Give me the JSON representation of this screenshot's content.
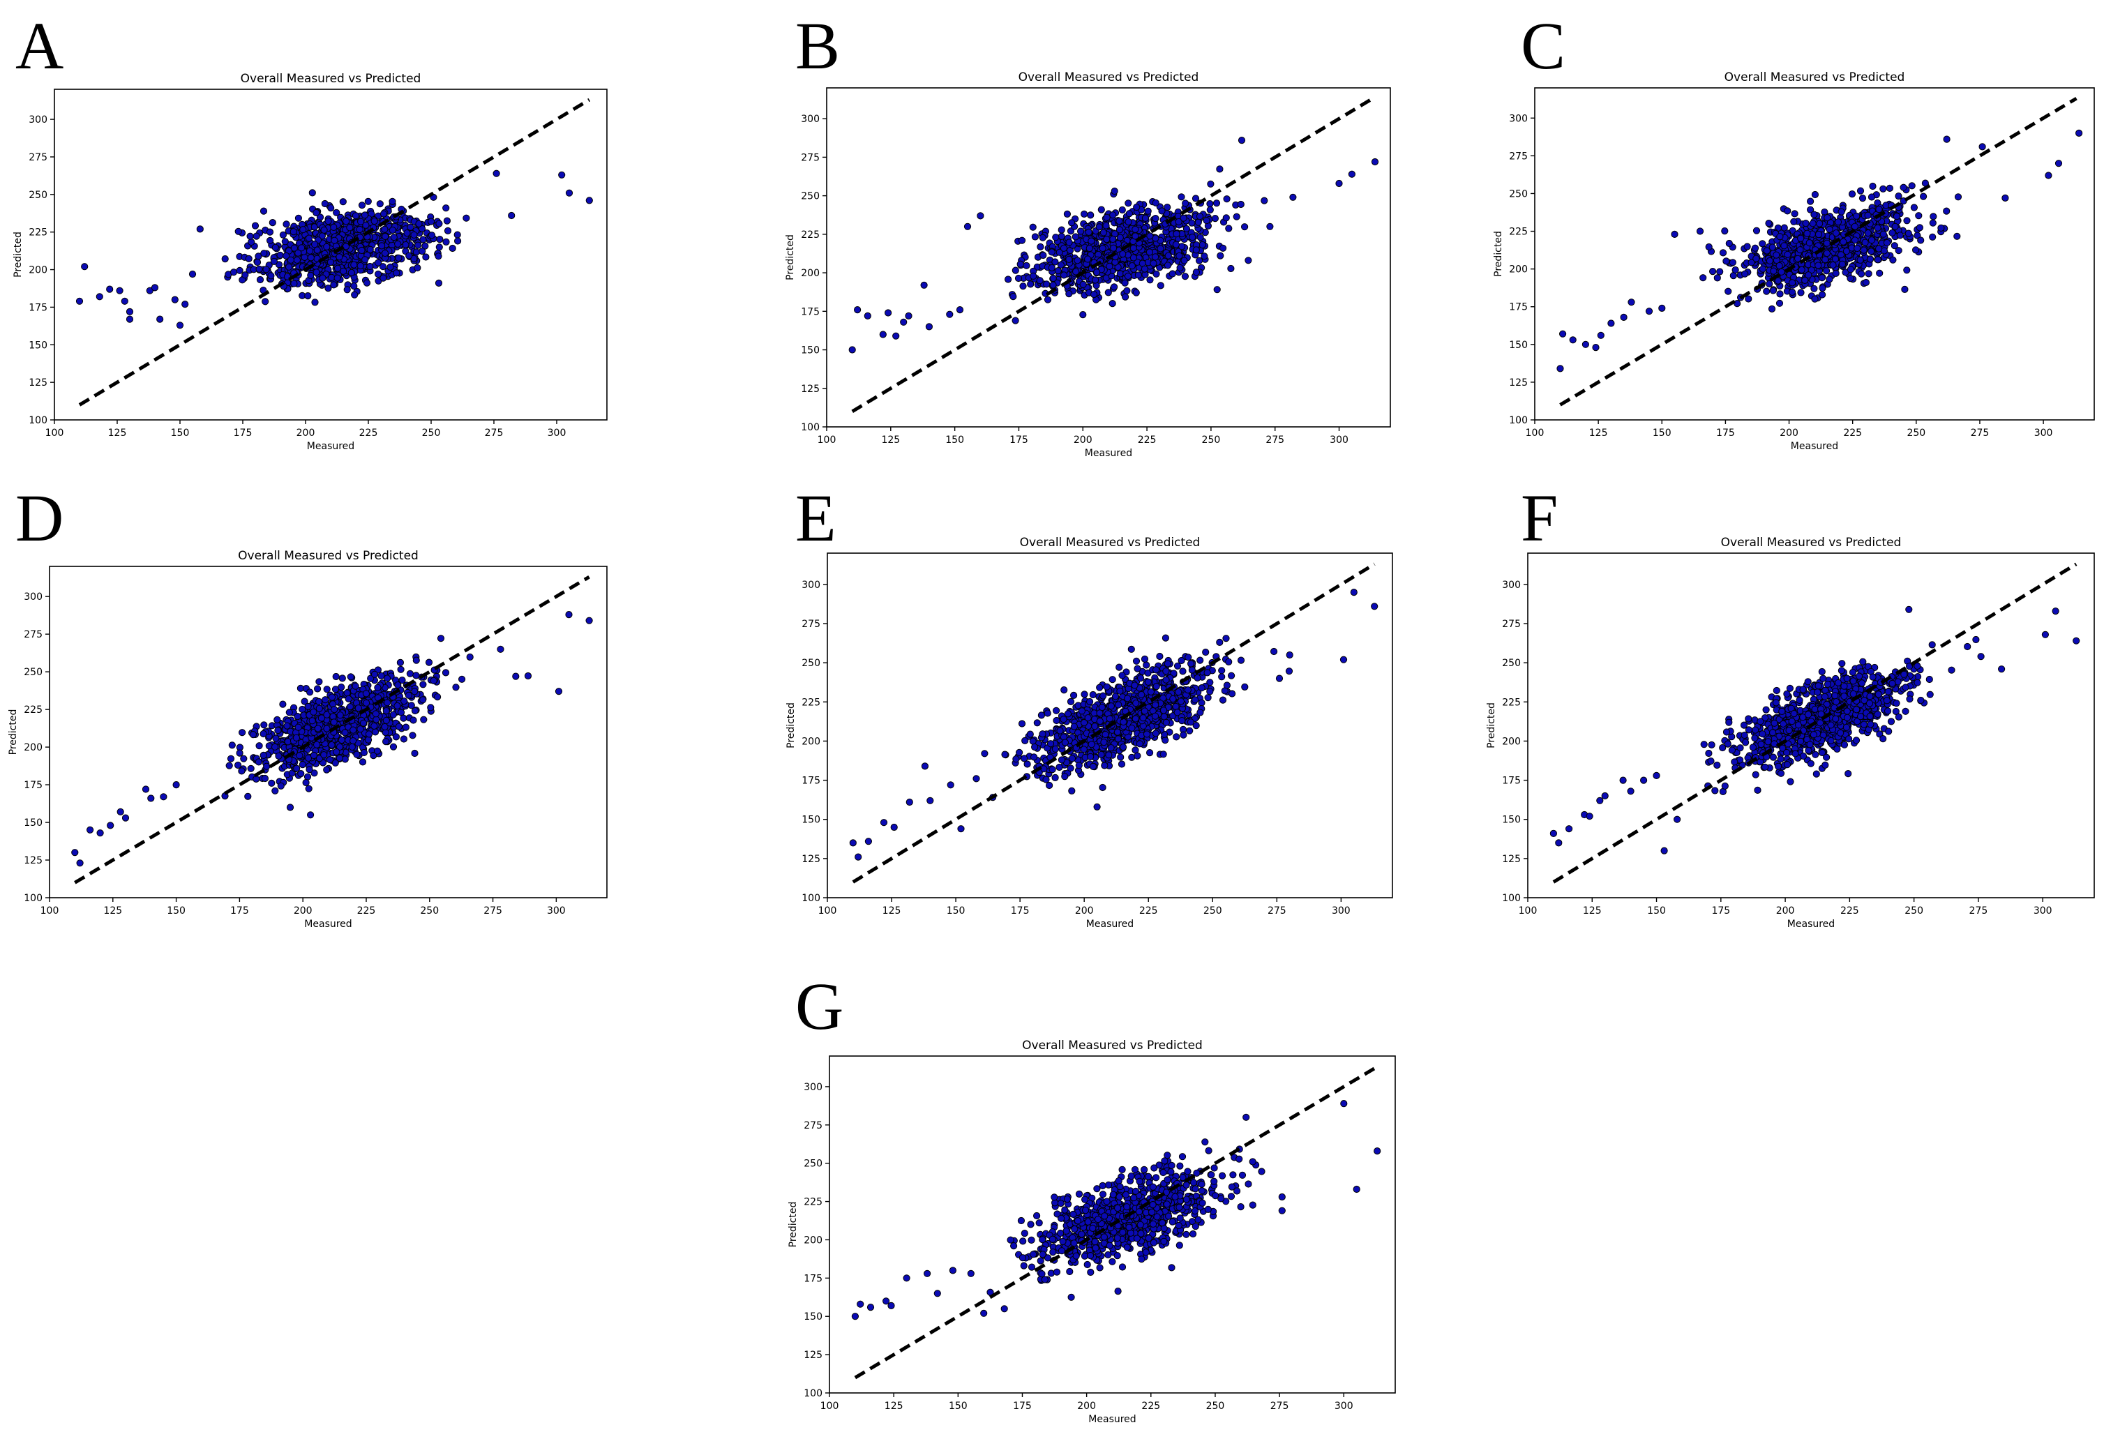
{
  "figure": {
    "panels": [
      {
        "letter": "A",
        "title": "Overall Measured vs Predicted",
        "xlabel": "Measured",
        "ylabel": "Predicted"
      },
      {
        "letter": "B",
        "title": "Overall Measured vs Predicted",
        "xlabel": "Measured",
        "ylabel": "Predicted"
      },
      {
        "letter": "C",
        "title": "Overall Measured vs Predicted",
        "xlabel": "Measured",
        "ylabel": "Predicted"
      },
      {
        "letter": "D",
        "title": "Overall Measured vs Predicted",
        "xlabel": "Measured",
        "ylabel": "Predicted"
      },
      {
        "letter": "E",
        "title": "Overall Measured vs Predicted",
        "xlabel": "Measured",
        "ylabel": "Predicted"
      },
      {
        "letter": "F",
        "title": "Overall Measured vs Predicted",
        "xlabel": "Measured",
        "ylabel": "Predicted"
      },
      {
        "letter": "G",
        "title": "Overall Measured vs Predicted",
        "xlabel": "Measured",
        "ylabel": "Predicted"
      }
    ]
  },
  "colors": {
    "point_fill": "#0a0ab4",
    "point_edge": "#000000",
    "identity_line": "#000000",
    "axes": "#000000"
  },
  "chart_data": [
    {
      "panel": "A",
      "type": "scatter",
      "title": "Overall Measured vs Predicted",
      "xlabel": "Measured",
      "ylabel": "Predicted",
      "xlim": [
        100,
        320
      ],
      "ylim": [
        100,
        320
      ],
      "xticks": [
        100,
        125,
        150,
        175,
        200,
        225,
        250,
        275,
        300
      ],
      "yticks": [
        100,
        125,
        150,
        175,
        200,
        225,
        250,
        275,
        300
      ],
      "identity_line": {
        "from": [
          110,
          110
        ],
        "to": [
          313,
          313
        ],
        "style": "dashed"
      },
      "n_points": 900,
      "center": [
        215,
        215
      ],
      "spread": [
        17,
        12
      ],
      "slope": 0.25,
      "outliers": [
        [
          110,
          179
        ],
        [
          112,
          202
        ],
        [
          118,
          182
        ],
        [
          122,
          187
        ],
        [
          126,
          186
        ],
        [
          128,
          179
        ],
        [
          130,
          167
        ],
        [
          130,
          172
        ],
        [
          138,
          186
        ],
        [
          140,
          188
        ],
        [
          142,
          167
        ],
        [
          148,
          180
        ],
        [
          150,
          163
        ],
        [
          152,
          177
        ],
        [
          155,
          197
        ],
        [
          158,
          227
        ],
        [
          302,
          263
        ],
        [
          305,
          251
        ],
        [
          313,
          246
        ],
        [
          282,
          236
        ],
        [
          276,
          264
        ]
      ]
    },
    {
      "panel": "B",
      "type": "scatter",
      "title": "Overall Measured vs Predicted",
      "xlabel": "Measured",
      "ylabel": "Predicted",
      "xlim": [
        100,
        320
      ],
      "ylim": [
        100,
        320
      ],
      "xticks": [
        100,
        125,
        150,
        175,
        200,
        225,
        250,
        275,
        300
      ],
      "yticks": [
        100,
        125,
        150,
        175,
        200,
        225,
        250,
        275,
        300
      ],
      "identity_line": {
        "from": [
          110,
          110
        ],
        "to": [
          313,
          313
        ],
        "style": "dashed"
      },
      "n_points": 900,
      "center": [
        215,
        215
      ],
      "spread": [
        17,
        12
      ],
      "slope": 0.35,
      "outliers": [
        [
          110,
          150
        ],
        [
          112,
          176
        ],
        [
          116,
          172
        ],
        [
          122,
          160
        ],
        [
          124,
          174
        ],
        [
          127,
          159
        ],
        [
          130,
          168
        ],
        [
          132,
          172
        ],
        [
          138,
          192
        ],
        [
          140,
          165
        ],
        [
          148,
          173
        ],
        [
          152,
          176
        ],
        [
          155,
          230
        ],
        [
          160,
          237
        ],
        [
          300,
          258
        ],
        [
          305,
          264
        ],
        [
          314,
          272
        ],
        [
          262,
          286
        ],
        [
          282,
          249
        ],
        [
          273,
          230
        ]
      ]
    },
    {
      "panel": "C",
      "type": "scatter",
      "title": "Overall Measured vs Predicted",
      "xlabel": "Measured",
      "ylabel": "Predicted",
      "xlim": [
        100,
        320
      ],
      "ylim": [
        100,
        320
      ],
      "xticks": [
        100,
        125,
        150,
        175,
        200,
        225,
        250,
        275,
        300
      ],
      "yticks": [
        100,
        125,
        150,
        175,
        200,
        225,
        250,
        275,
        300
      ],
      "identity_line": {
        "from": [
          110,
          110
        ],
        "to": [
          313,
          313
        ],
        "style": "dashed"
      },
      "n_points": 900,
      "center": [
        215,
        215
      ],
      "spread": [
        17,
        12
      ],
      "slope": 0.45,
      "outliers": [
        [
          110,
          134
        ],
        [
          111,
          157
        ],
        [
          115,
          153
        ],
        [
          120,
          150
        ],
        [
          124,
          148
        ],
        [
          126,
          156
        ],
        [
          130,
          164
        ],
        [
          135,
          168
        ],
        [
          138,
          178
        ],
        [
          145,
          172
        ],
        [
          150,
          174
        ],
        [
          155,
          223
        ],
        [
          165,
          225
        ],
        [
          302,
          262
        ],
        [
          306,
          270
        ],
        [
          314,
          290
        ],
        [
          262,
          286
        ],
        [
          285,
          247
        ],
        [
          276,
          281
        ]
      ]
    },
    {
      "panel": "D",
      "type": "scatter",
      "title": "Overall Measured vs Predicted",
      "xlabel": "Measured",
      "ylabel": "Predicted",
      "xlim": [
        100,
        320
      ],
      "ylim": [
        100,
        320
      ],
      "xticks": [
        100,
        125,
        150,
        175,
        200,
        225,
        250,
        275,
        300
      ],
      "yticks": [
        100,
        125,
        150,
        175,
        200,
        225,
        250,
        275,
        300
      ],
      "identity_line": {
        "from": [
          110,
          110
        ],
        "to": [
          313,
          313
        ],
        "style": "dashed"
      },
      "n_points": 900,
      "center": [
        215,
        215
      ],
      "spread": [
        17,
        12
      ],
      "slope": 0.62,
      "outliers": [
        [
          110,
          130
        ],
        [
          112,
          123
        ],
        [
          116,
          145
        ],
        [
          120,
          143
        ],
        [
          124,
          148
        ],
        [
          128,
          157
        ],
        [
          130,
          153
        ],
        [
          138,
          172
        ],
        [
          140,
          166
        ],
        [
          145,
          167
        ],
        [
          150,
          175
        ],
        [
          195,
          160
        ],
        [
          203,
          155
        ],
        [
          301,
          237
        ],
        [
          305,
          288
        ],
        [
          313,
          284
        ],
        [
          278,
          265
        ],
        [
          284,
          247
        ]
      ]
    },
    {
      "panel": "E",
      "type": "scatter",
      "title": "Overall Measured vs Predicted",
      "xlabel": "Measured",
      "ylabel": "Predicted",
      "xlim": [
        100,
        320
      ],
      "ylim": [
        100,
        320
      ],
      "xticks": [
        100,
        125,
        150,
        175,
        200,
        225,
        250,
        275,
        300
      ],
      "yticks": [
        100,
        125,
        150,
        175,
        200,
        225,
        250,
        275,
        300
      ],
      "identity_line": {
        "from": [
          110,
          110
        ],
        "to": [
          313,
          313
        ],
        "style": "dashed"
      },
      "n_points": 900,
      "center": [
        215,
        215
      ],
      "spread": [
        17,
        12
      ],
      "slope": 0.6,
      "outliers": [
        [
          110,
          135
        ],
        [
          112,
          126
        ],
        [
          116,
          136
        ],
        [
          122,
          148
        ],
        [
          126,
          145
        ],
        [
          132,
          161
        ],
        [
          138,
          184
        ],
        [
          140,
          162
        ],
        [
          148,
          172
        ],
        [
          152,
          144
        ],
        [
          158,
          176
        ],
        [
          205,
          158
        ],
        [
          301,
          252
        ],
        [
          305,
          295
        ],
        [
          313,
          286
        ],
        [
          280,
          255
        ],
        [
          276,
          240
        ]
      ]
    },
    {
      "panel": "F",
      "type": "scatter",
      "title": "Overall Measured vs Predicted",
      "xlabel": "Measured",
      "ylabel": "Predicted",
      "xlim": [
        100,
        320
      ],
      "ylim": [
        100,
        320
      ],
      "xticks": [
        100,
        125,
        150,
        175,
        200,
        225,
        250,
        275,
        300
      ],
      "yticks": [
        100,
        125,
        150,
        175,
        200,
        225,
        250,
        275,
        300
      ],
      "identity_line": {
        "from": [
          110,
          110
        ],
        "to": [
          313,
          313
        ],
        "style": "dashed"
      },
      "n_points": 900,
      "center": [
        215,
        215
      ],
      "spread": [
        17,
        12
      ],
      "slope": 0.63,
      "outliers": [
        [
          110,
          141
        ],
        [
          112,
          135
        ],
        [
          116,
          144
        ],
        [
          122,
          153
        ],
        [
          124,
          152
        ],
        [
          128,
          162
        ],
        [
          130,
          165
        ],
        [
          137,
          175
        ],
        [
          140,
          168
        ],
        [
          145,
          175
        ],
        [
          150,
          178
        ],
        [
          153,
          130
        ],
        [
          158,
          150
        ],
        [
          301,
          268
        ],
        [
          305,
          283
        ],
        [
          313,
          264
        ],
        [
          284,
          246
        ],
        [
          276,
          254
        ],
        [
          248,
          284
        ]
      ]
    },
    {
      "panel": "G",
      "type": "scatter",
      "title": "Overall Measured vs Predicted",
      "xlabel": "Measured",
      "ylabel": "Predicted",
      "xlim": [
        100,
        320
      ],
      "ylim": [
        100,
        320
      ],
      "xticks": [
        100,
        125,
        150,
        175,
        200,
        225,
        250,
        275,
        300
      ],
      "yticks": [
        100,
        125,
        150,
        175,
        200,
        225,
        250,
        275,
        300
      ],
      "identity_line": {
        "from": [
          110,
          110
        ],
        "to": [
          313,
          313
        ],
        "style": "dashed"
      },
      "n_points": 900,
      "center": [
        215,
        215
      ],
      "spread": [
        17,
        12
      ],
      "slope": 0.55,
      "outliers": [
        [
          110,
          150
        ],
        [
          112,
          158
        ],
        [
          116,
          156
        ],
        [
          122,
          160
        ],
        [
          124,
          157
        ],
        [
          130,
          175
        ],
        [
          138,
          178
        ],
        [
          142,
          165
        ],
        [
          148,
          180
        ],
        [
          155,
          178
        ],
        [
          160,
          152
        ],
        [
          168,
          155
        ],
        [
          300,
          289
        ],
        [
          305,
          233
        ],
        [
          313,
          258
        ],
        [
          276,
          219
        ],
        [
          276,
          228
        ],
        [
          262,
          280
        ]
      ]
    }
  ]
}
